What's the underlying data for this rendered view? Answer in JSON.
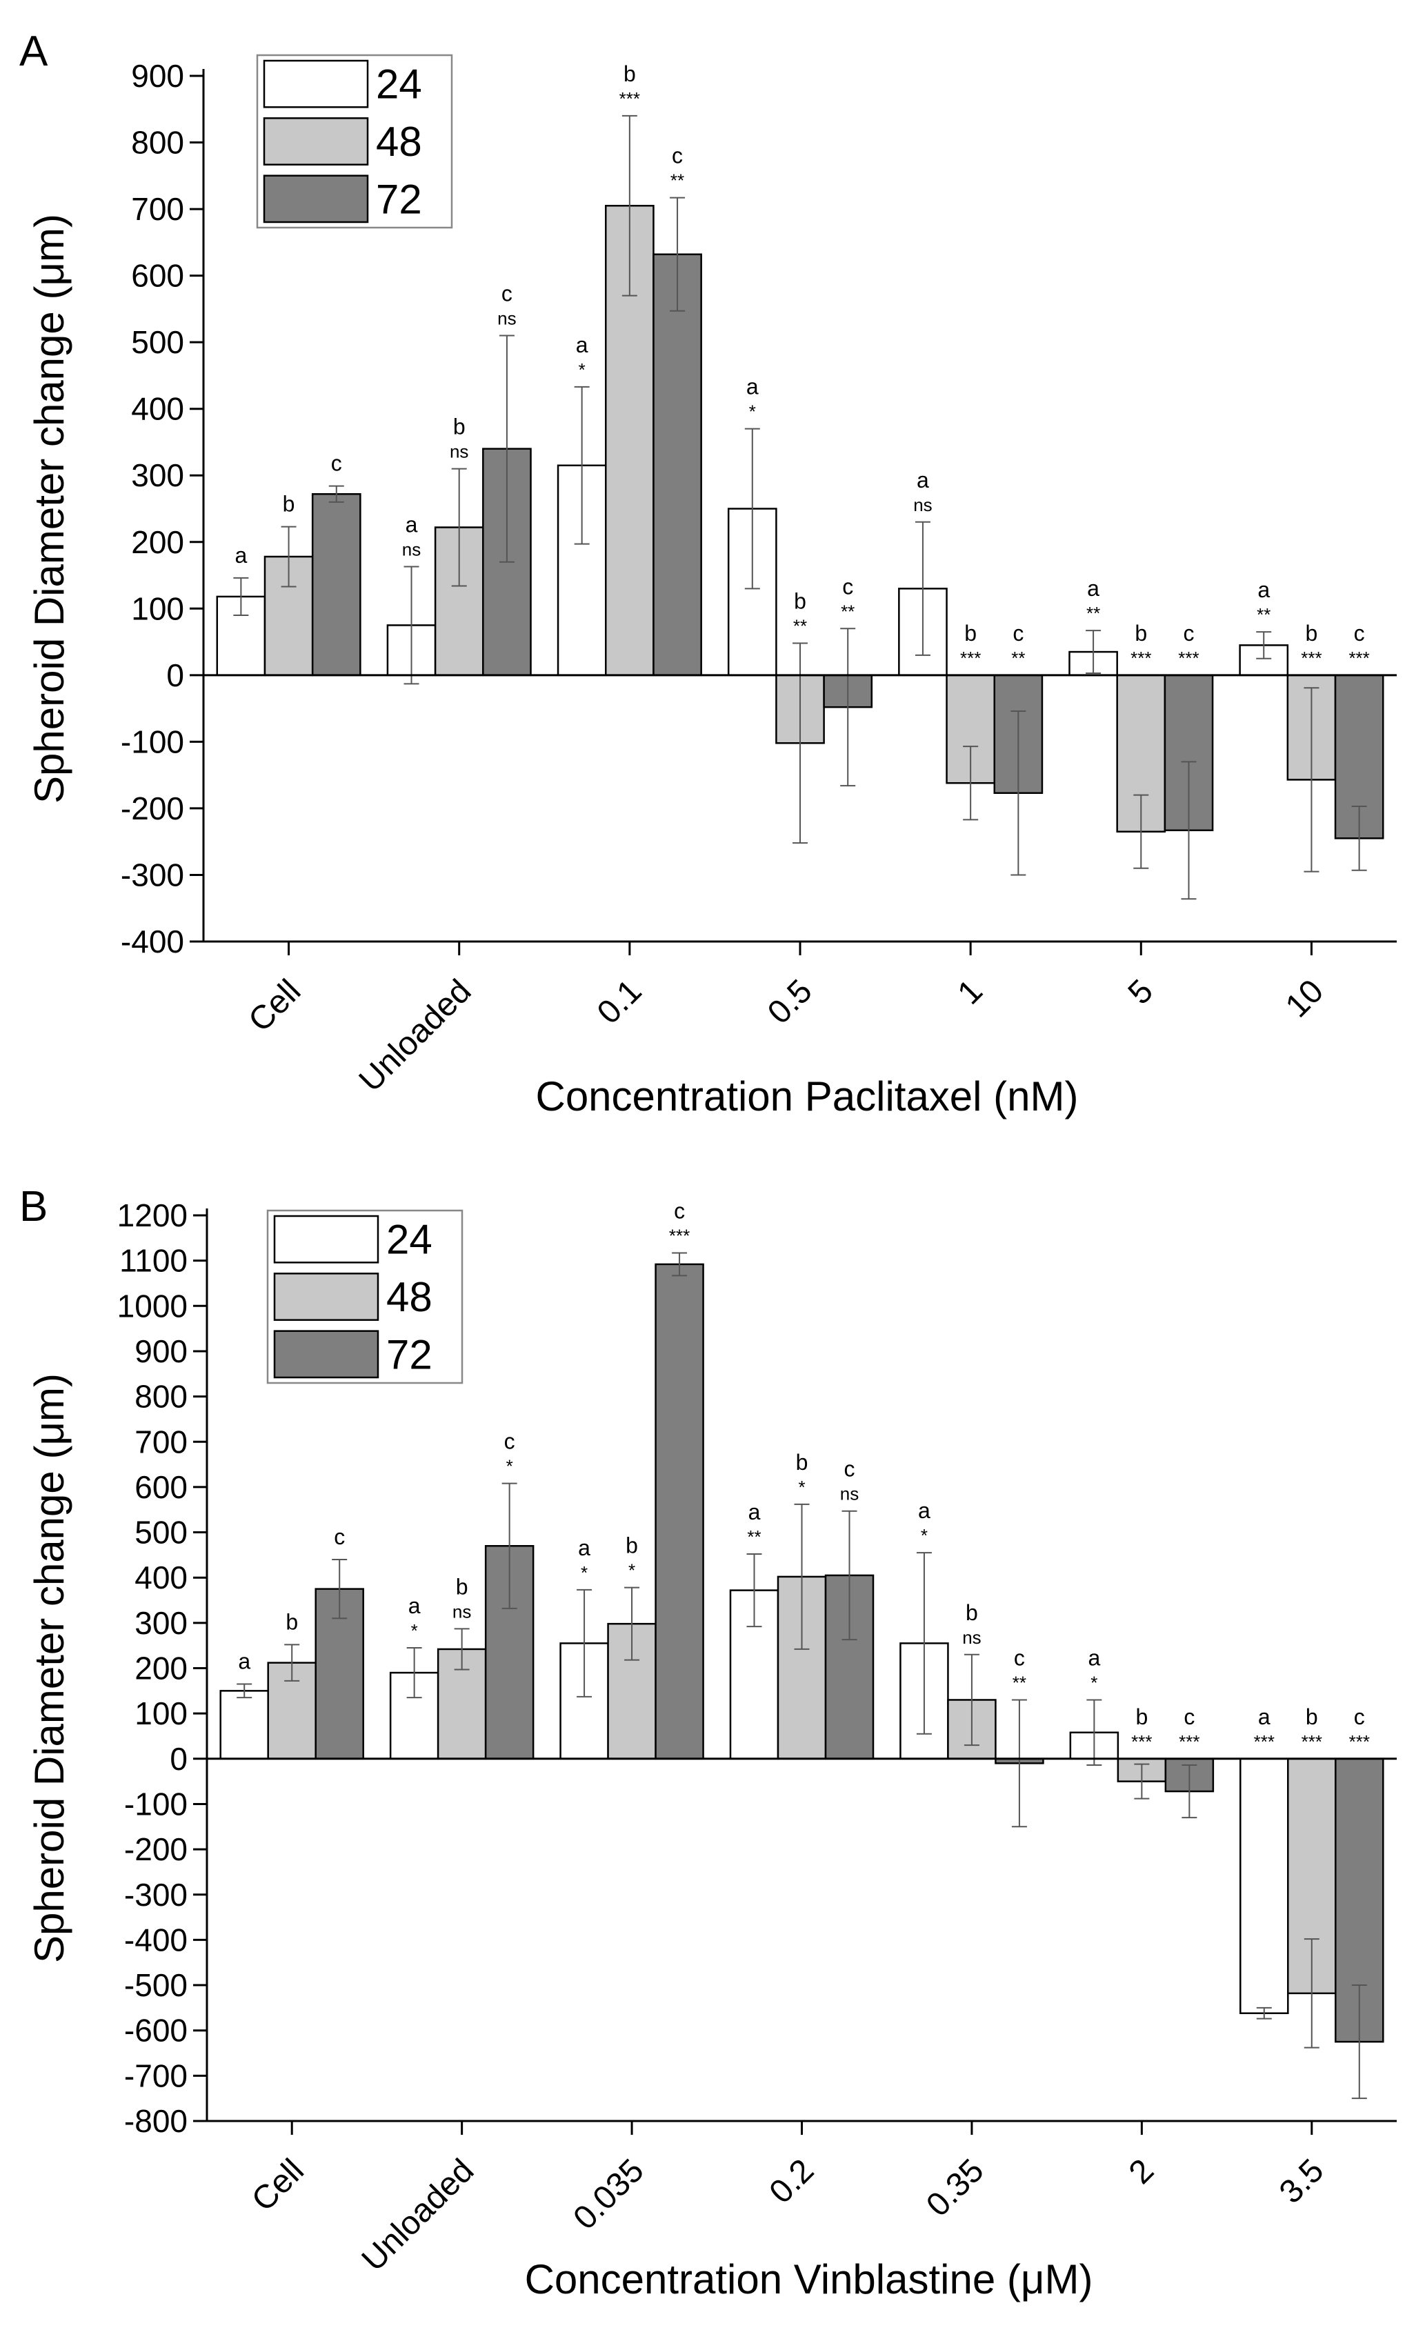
{
  "chart_data": [
    {
      "type": "bar",
      "panel": "A",
      "ylabel": "Spheroid Diameter change (μm)",
      "xlabel": "Concentration Paclitaxel (nM)",
      "ylim": [
        -400,
        900
      ],
      "ytick_step": 100,
      "legend_position": "top-left",
      "grid": false,
      "categories": [
        "Cell",
        "Unloaded",
        "0.1",
        "0.5",
        "1",
        "5",
        "10"
      ],
      "series": [
        {
          "name": "24",
          "color": "#ffffff",
          "values": [
            118,
            75,
            315,
            250,
            130,
            35,
            45
          ],
          "errors": [
            28,
            88,
            118,
            120,
            100,
            32,
            20
          ],
          "letters": [
            "a",
            "a",
            "a",
            "a",
            "a",
            "a",
            "a"
          ],
          "sig": [
            "",
            "ns",
            "*",
            "*",
            "ns",
            "**",
            "**"
          ]
        },
        {
          "name": "48",
          "color": "#c8c8c8",
          "values": [
            178,
            222,
            705,
            -102,
            -162,
            -235,
            -157
          ],
          "errors": [
            45,
            88,
            135,
            150,
            55,
            55,
            138
          ],
          "letters": [
            "b",
            "b",
            "b",
            "b",
            "b",
            "b",
            "b"
          ],
          "sig": [
            "",
            "ns",
            "***",
            "**",
            "***",
            "***",
            "***"
          ]
        },
        {
          "name": "72",
          "color": "#7f7f7f",
          "values": [
            272,
            340,
            632,
            -48,
            -177,
            -233,
            -245
          ],
          "errors": [
            12,
            170,
            85,
            118,
            123,
            103,
            48
          ],
          "letters": [
            "c",
            "c",
            "c",
            "c",
            "c",
            "c",
            "c"
          ],
          "sig": [
            "",
            "ns",
            "**",
            "**",
            "**",
            "***",
            "***"
          ]
        }
      ]
    },
    {
      "type": "bar",
      "panel": "B",
      "ylabel": "Spheroid Diameter change (μm)",
      "xlabel": "Concentration Vinblastine (μM)",
      "ylim": [
        -800,
        1200
      ],
      "ytick_step": 100,
      "legend_position": "top-left",
      "grid": false,
      "categories": [
        "Cell",
        "Unloaded",
        "0.035",
        "0.2",
        "0.35",
        "2",
        "3.5"
      ],
      "series": [
        {
          "name": "24",
          "color": "#ffffff",
          "values": [
            150,
            190,
            255,
            372,
            255,
            58,
            -562
          ],
          "errors": [
            15,
            55,
            118,
            80,
            200,
            72,
            12
          ],
          "letters": [
            "a",
            "a",
            "a",
            "a",
            "a",
            "a",
            "a"
          ],
          "sig": [
            "",
            "*",
            "*",
            "**",
            "*",
            "*",
            "***"
          ]
        },
        {
          "name": "48",
          "color": "#c8c8c8",
          "values": [
            212,
            242,
            298,
            402,
            130,
            -50,
            -518
          ],
          "errors": [
            40,
            45,
            80,
            160,
            100,
            38,
            120
          ],
          "letters": [
            "b",
            "b",
            "b",
            "b",
            "b",
            "b",
            "b"
          ],
          "sig": [
            "",
            "ns",
            "*",
            "*",
            "ns",
            "***",
            "***"
          ]
        },
        {
          "name": "72",
          "color": "#7f7f7f",
          "values": [
            375,
            470,
            1092,
            405,
            -10,
            -72,
            -625
          ],
          "errors": [
            65,
            138,
            25,
            142,
            140,
            58,
            125
          ],
          "letters": [
            "c",
            "c",
            "c",
            "c",
            "c",
            "c",
            "c"
          ],
          "sig": [
            "",
            "*",
            "***",
            "ns",
            "**",
            "***",
            "***"
          ]
        }
      ]
    }
  ],
  "panels": [
    {
      "letter": "A"
    },
    {
      "letter": "B"
    }
  ]
}
